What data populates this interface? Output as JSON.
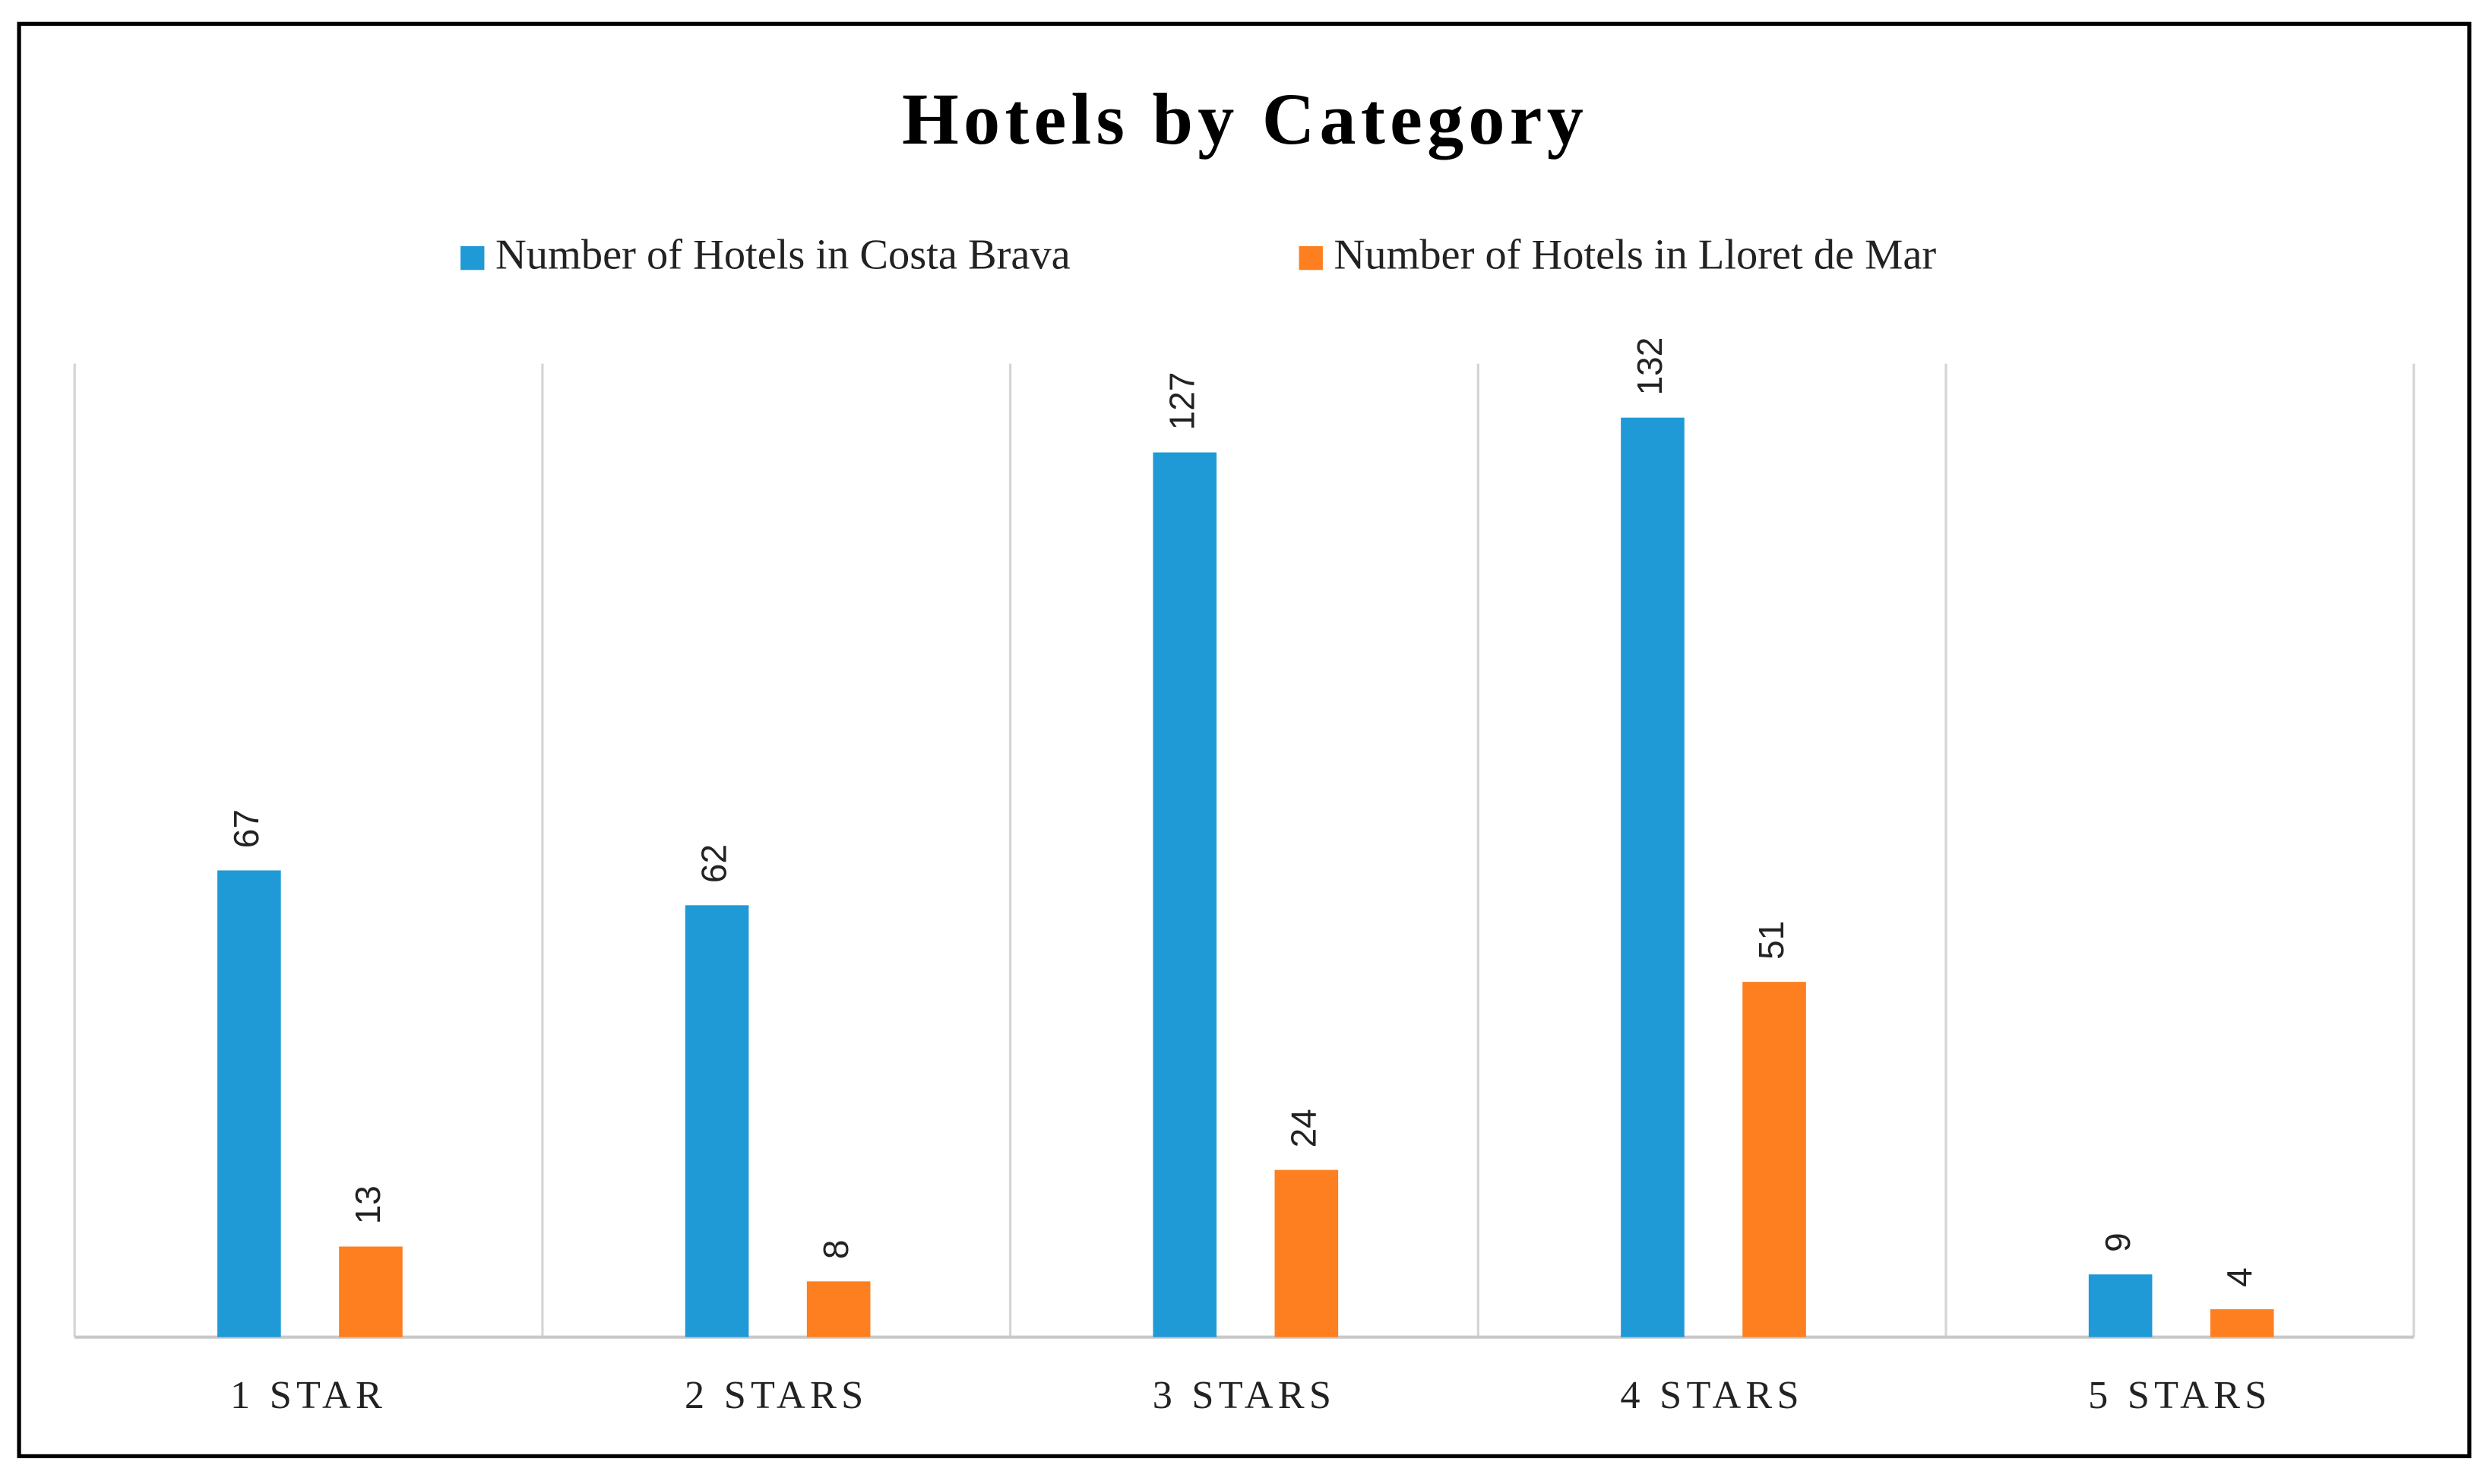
{
  "chart_data": {
    "type": "bar",
    "title": "Hotels by Category",
    "categories": [
      "1 STAR",
      "2 STARS",
      "3 STARS",
      "4 STARS",
      "5 STARS"
    ],
    "series": [
      {
        "name": "Number of Hotels in Costa Brava",
        "color": "#1f9ad6",
        "values": [
          67,
          62,
          127,
          132,
          9
        ]
      },
      {
        "name": "Number of Hotels in Lloret de Mar",
        "color": "#fd7f20",
        "values": [
          13,
          8,
          24,
          51,
          4
        ]
      }
    ],
    "legend": "top",
    "grid": true
  }
}
